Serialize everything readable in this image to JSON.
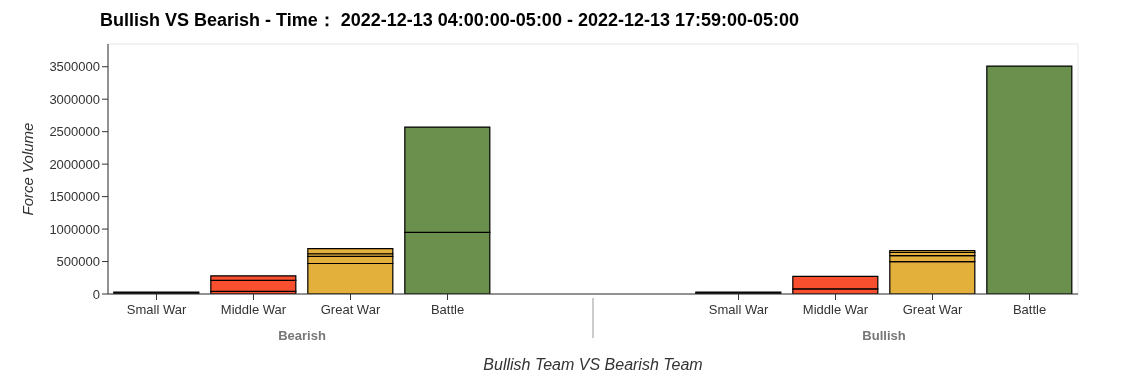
{
  "chart_data": {
    "type": "bar",
    "stacked": true,
    "title": "Bullish VS Bearish - Time：  2022-12-13 04:00:00-05:00 - 2022-12-13 17:59:00-05:00",
    "xlabel": "Bullish Team VS Bearish Team",
    "ylabel": "Force Volume",
    "categories": [
      "Small War",
      "Middle War",
      "Great War",
      "Battle",
      null,
      null,
      "Small War",
      "Middle War",
      "Great War",
      "Battle"
    ],
    "annotations": [
      "Bearish",
      "Bullish"
    ],
    "series": [
      {
        "colors": [
          "#222222",
          "#f94f2f",
          "#e4b03c",
          "#6b8f4c",
          "#ffffff",
          "#ffffff",
          "#222222",
          "#f94f2f",
          "#e4b03c",
          "#6b8f4c"
        ],
        "values": [
          30000,
          40000,
          470000,
          950000,
          null,
          null,
          30000,
          80000,
          500000,
          3510000
        ]
      },
      {
        "colors": [
          "#222222",
          "#f94f2f",
          "#e4b03c",
          "#6b8f4c",
          "#ffffff",
          "#ffffff",
          "#222222",
          "#f94f2f",
          "#e4b03c",
          "#6b8f4c"
        ],
        "values": [
          null,
          170000,
          110000,
          1620000,
          null,
          null,
          null,
          190000,
          90000,
          null
        ]
      },
      {
        "colors": [
          "#222222",
          "#f94f2f",
          "#e4b03c",
          "#6b8f4c",
          "#ffffff",
          "#ffffff",
          "#222222",
          "#f94f2f",
          "#e4b03c",
          "#6b8f4c"
        ],
        "values": [
          null,
          70000,
          40000,
          null,
          null,
          null,
          null,
          null,
          50000,
          null
        ]
      },
      {
        "colors": [
          "#222222",
          "#f94f2f",
          "#e4b03c",
          "#6b8f4c",
          "#ffffff",
          "#ffffff",
          "#222222",
          "#f94f2f",
          "#e4b03c",
          "#6b8f4c"
        ],
        "values": [
          null,
          null,
          80000,
          null,
          null,
          null,
          null,
          null,
          30000,
          null
        ]
      }
    ],
    "ylim": [
      0,
      3850000
    ],
    "yticks": [
      0,
      500000,
      1000000,
      1500000,
      2000000,
      2500000,
      3000000,
      3500000
    ]
  }
}
